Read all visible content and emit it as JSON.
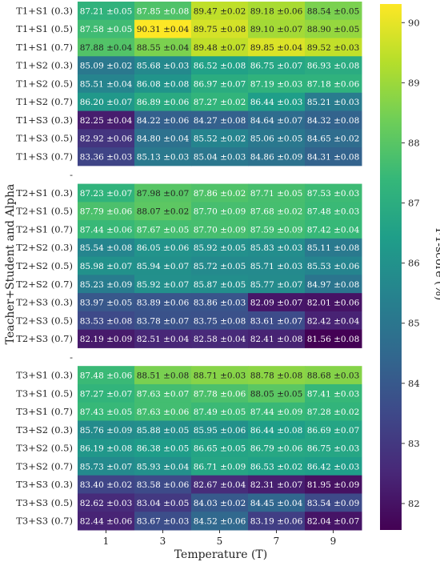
{
  "chart_data": {
    "type": "heatmap",
    "xlabel": "Temperature (T)",
    "ylabel": "Teacher+Student and Alpha",
    "colorbar_label": "F1-score (%)",
    "x": [
      "1",
      "3",
      "5",
      "7",
      "9"
    ],
    "color_range": [
      81.56,
      90.31
    ],
    "colorbar_ticks": [
      "82",
      "83",
      "84",
      "85",
      "86",
      "87",
      "88",
      "89",
      "90"
    ],
    "colormap": [
      "#440154",
      "#482878",
      "#3e4989",
      "#31688e",
      "#26828e",
      "#1f9e89",
      "#35b779",
      "#6ece58",
      "#b5de2b",
      "#fde725"
    ],
    "groups": [
      {
        "separator": "",
        "rows": [
          {
            "label": "T1+S1 (0.3)",
            "values": [
              87.21,
              87.85,
              89.47,
              89.18,
              88.54
            ],
            "errors": [
              "±0.05",
              "±0.08",
              "±0.02",
              "±0.06",
              "±0.05"
            ]
          },
          {
            "label": "T1+S1 (0.5)",
            "values": [
              87.58,
              90.31,
              89.75,
              89.1,
              88.9
            ],
            "errors": [
              "±0.05",
              "±0.04",
              "±0.08",
              "±0.07",
              "±0.05"
            ]
          },
          {
            "label": "T1+S1 (0.7)",
            "values": [
              87.88,
              88.55,
              89.48,
              89.85,
              89.52
            ],
            "errors": [
              "±0.04",
              "±0.04",
              "±0.07",
              "±0.04",
              "±0.03"
            ]
          },
          {
            "label": "T1+S2 (0.3)",
            "values": [
              85.09,
              85.68,
              86.52,
              86.75,
              86.93
            ],
            "errors": [
              "±0.02",
              "±0.03",
              "±0.08",
              "±0.07",
              "±0.08"
            ]
          },
          {
            "label": "T1+S2 (0.5)",
            "values": [
              85.51,
              86.08,
              86.97,
              87.19,
              87.18
            ],
            "errors": [
              "±0.04",
              "±0.08",
              "±0.07",
              "±0.03",
              "±0.06"
            ]
          },
          {
            "label": "T1+S2 (0.7)",
            "values": [
              86.2,
              86.89,
              87.27,
              86.44,
              85.21
            ],
            "errors": [
              "±0.07",
              "±0.06",
              "±0.02",
              "±0.03",
              "±0.03"
            ]
          },
          {
            "label": "T1+S3 (0.3)",
            "values": [
              82.25,
              84.22,
              84.27,
              84.64,
              84.32
            ],
            "errors": [
              "±0.04",
              "±0.06",
              "±0.08",
              "±0.07",
              "±0.08"
            ]
          },
          {
            "label": "T1+S3 (0.5)",
            "values": [
              82.92,
              84.8,
              85.52,
              85.06,
              84.65
            ],
            "errors": [
              "±0.06",
              "±0.04",
              "±0.02",
              "±0.05",
              "±0.02"
            ]
          },
          {
            "label": "T1+S3 (0.7)",
            "values": [
              83.36,
              85.13,
              85.04,
              84.86,
              84.31
            ],
            "errors": [
              "±0.03",
              "±0.03",
              "±0.03",
              "±0.09",
              "±0.08"
            ]
          }
        ]
      },
      {
        "separator": "-",
        "rows": [
          {
            "label": "T2+S1 (0.3)",
            "values": [
              87.23,
              87.98,
              87.86,
              87.71,
              87.53
            ],
            "errors": [
              "±0.07",
              "±0.07",
              "±0.02",
              "±0.05",
              "±0.03"
            ]
          },
          {
            "label": "T2+S1 (0.5)",
            "values": [
              87.79,
              88.07,
              87.7,
              87.68,
              87.48
            ],
            "errors": [
              "±0.06",
              "±0.02",
              "±0.09",
              "±0.02",
              "±0.03"
            ]
          },
          {
            "label": "T2+S1 (0.7)",
            "values": [
              87.44,
              87.67,
              87.7,
              87.59,
              87.42
            ],
            "errors": [
              "±0.06",
              "±0.05",
              "±0.09",
              "±0.09",
              "±0.04"
            ]
          },
          {
            "label": "T2+S2 (0.3)",
            "values": [
              85.54,
              86.05,
              85.92,
              85.83,
              85.11
            ],
            "errors": [
              "±0.08",
              "±0.06",
              "±0.05",
              "±0.03",
              "±0.08"
            ]
          },
          {
            "label": "T2+S2 (0.5)",
            "values": [
              85.98,
              85.94,
              85.72,
              85.71,
              85.53
            ],
            "errors": [
              "±0.07",
              "±0.07",
              "±0.05",
              "±0.03",
              "±0.06"
            ]
          },
          {
            "label": "T2+S2 (0.7)",
            "values": [
              85.23,
              85.92,
              85.87,
              85.77,
              84.97
            ],
            "errors": [
              "±0.09",
              "±0.07",
              "±0.05",
              "±0.07",
              "±0.08"
            ]
          },
          {
            "label": "T2+S3 (0.3)",
            "values": [
              83.97,
              83.89,
              83.86,
              82.09,
              82.01
            ],
            "errors": [
              "±0.05",
              "±0.06",
              "±0.03",
              "±0.07",
              "±0.06"
            ]
          },
          {
            "label": "T2+S3 (0.5)",
            "values": [
              83.53,
              83.78,
              83.75,
              83.61,
              82.42
            ],
            "errors": [
              "±0.08",
              "±0.07",
              "±0.08",
              "±0.07",
              "±0.04"
            ]
          },
          {
            "label": "T2+S3 (0.7)",
            "values": [
              82.19,
              82.51,
              82.58,
              82.41,
              81.56
            ],
            "errors": [
              "±0.09",
              "±0.04",
              "±0.04",
              "±0.08",
              "±0.08"
            ]
          }
        ]
      },
      {
        "separator": "-",
        "rows": [
          {
            "label": "T3+S1 (0.3)",
            "values": [
              87.48,
              88.51,
              88.71,
              88.78,
              88.68
            ],
            "errors": [
              "±0.06",
              "±0.08",
              "±0.03",
              "±0.08",
              "±0.03"
            ]
          },
          {
            "label": "T3+S1 (0.5)",
            "values": [
              87.27,
              87.63,
              87.78,
              88.05,
              87.41
            ],
            "errors": [
              "±0.07",
              "±0.07",
              "±0.06",
              "±0.05",
              "±0.03"
            ]
          },
          {
            "label": "T3+S1 (0.7)",
            "values": [
              87.43,
              87.63,
              87.49,
              87.44,
              87.28
            ],
            "errors": [
              "±0.05",
              "±0.06",
              "±0.05",
              "±0.09",
              "±0.02"
            ]
          },
          {
            "label": "T3+S2 (0.3)",
            "values": [
              85.76,
              85.88,
              85.95,
              86.44,
              86.69
            ],
            "errors": [
              "±0.09",
              "±0.05",
              "±0.06",
              "±0.08",
              "±0.07"
            ]
          },
          {
            "label": "T3+S2 (0.5)",
            "values": [
              86.19,
              86.38,
              86.65,
              86.79,
              86.75
            ],
            "errors": [
              "±0.08",
              "±0.05",
              "±0.05",
              "±0.06",
              "±0.03"
            ]
          },
          {
            "label": "T3+S2 (0.7)",
            "values": [
              85.73,
              85.93,
              86.71,
              86.53,
              86.42
            ],
            "errors": [
              "±0.07",
              "±0.04",
              "±0.09",
              "±0.02",
              "±0.03"
            ]
          },
          {
            "label": "T3+S3 (0.3)",
            "values": [
              83.4,
              83.58,
              82.67,
              82.31,
              81.95
            ],
            "errors": [
              "±0.02",
              "±0.06",
              "±0.04",
              "±0.07",
              "±0.09"
            ]
          },
          {
            "label": "T3+S3 (0.5)",
            "values": [
              82.62,
              83.04,
              84.03,
              84.45,
              83.54
            ],
            "errors": [
              "±0.03",
              "±0.05",
              "±0.02",
              "±0.04",
              "±0.09"
            ]
          },
          {
            "label": "T3+S3 (0.7)",
            "values": [
              82.44,
              83.67,
              84.52,
              83.19,
              82.04
            ],
            "errors": [
              "±0.06",
              "±0.03",
              "±0.06",
              "±0.06",
              "±0.07"
            ]
          }
        ]
      }
    ]
  }
}
